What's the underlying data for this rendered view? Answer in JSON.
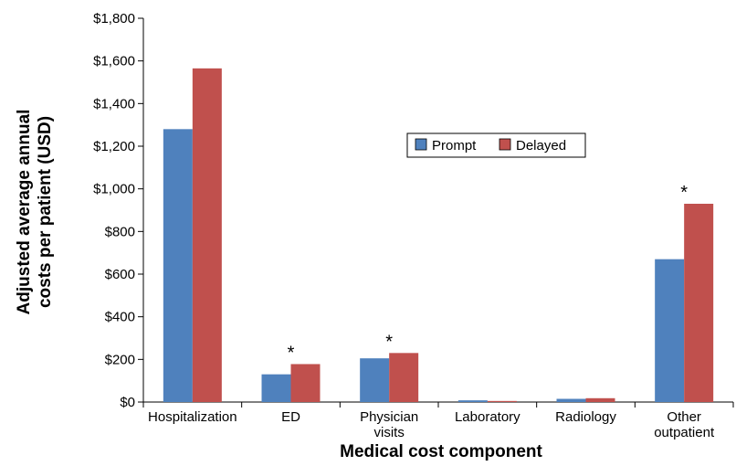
{
  "chart_data": {
    "type": "bar",
    "title": "",
    "xlabel": "Medical cost component",
    "ylabel": "Adjusted average annual costs per patient (USD)",
    "ylabel_lines": [
      "Adjusted average annual",
      "costs per patient (USD)"
    ],
    "ylim": [
      0,
      1800
    ],
    "yticks": [
      0,
      200,
      400,
      600,
      800,
      1000,
      1200,
      1400,
      1600,
      1800
    ],
    "ytick_labels": [
      "$0",
      "$200",
      "$400",
      "$600",
      "$800",
      "$1,000",
      "$1,200",
      "$1,400",
      "$1,600",
      "$1,800"
    ],
    "categories": [
      "Hospitalization",
      "ED",
      "Physician visits",
      "Laboratory",
      "Radiology",
      "Other outpatient"
    ],
    "category_lines": [
      [
        "Hospitalization"
      ],
      [
        "ED"
      ],
      [
        "Physician",
        "visits"
      ],
      [
        "Laboratory"
      ],
      [
        "Radiology"
      ],
      [
        "Other",
        "outpatient"
      ]
    ],
    "series": [
      {
        "name": "Prompt",
        "color": "#4f81bd",
        "values": [
          1280,
          130,
          205,
          8,
          15,
          670
        ]
      },
      {
        "name": "Delayed",
        "color": "#c0504d",
        "values": [
          1565,
          178,
          230,
          5,
          18,
          930
        ]
      }
    ],
    "significance_marker": "*",
    "significant": [
      false,
      true,
      true,
      false,
      false,
      true
    ],
    "legend": {
      "position": "upper-center",
      "entries": [
        "Prompt",
        "Delayed"
      ]
    },
    "grid": false
  }
}
